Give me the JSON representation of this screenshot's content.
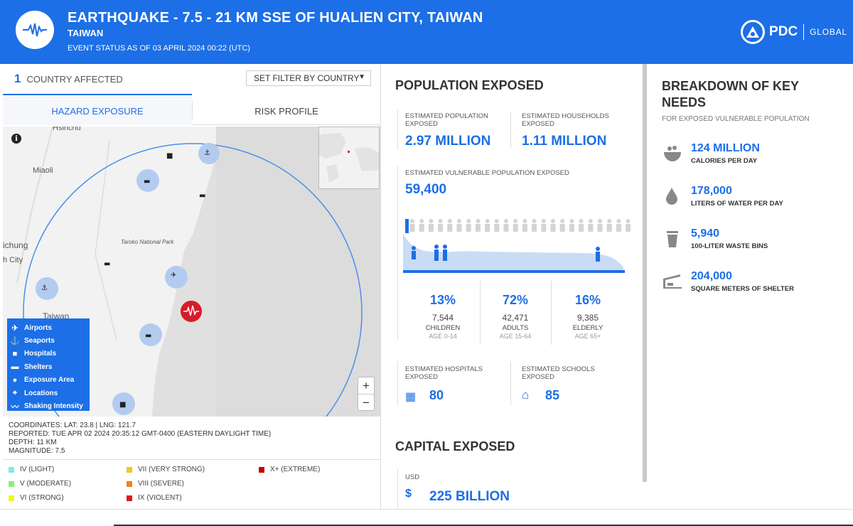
{
  "header": {
    "title": "EARTHQUAKE - 7.5 - 21 KM SSE OF HUALIEN CITY, TAIWAN",
    "subtitle": "TAIWAN",
    "status": "EVENT STATUS AS OF 03 APRIL 2024 00:22 (UTC)",
    "brand": "PDC",
    "brand_suffix": "GLOBAL",
    "event_icon": "seismograph-icon"
  },
  "left": {
    "country_count": "1",
    "country_label": "COUNTRY AFFECTED",
    "filter_label": "SET FILTER BY COUNTRY",
    "tabs": [
      "HAZARD EXPOSURE",
      "RISK PROFILE"
    ],
    "active_tab": "HAZARD EXPOSURE",
    "map": {
      "labels": [
        "Hsinchu",
        "Miaoli",
        "ichung",
        "h City",
        "Taiwan",
        "Taroko National Park"
      ],
      "info_glyph": "i",
      "legend": [
        {
          "icon": "airport-icon",
          "label": "Airports"
        },
        {
          "icon": "seaport-icon",
          "label": "Seaports"
        },
        {
          "icon": "hospital-icon",
          "label": "Hospitals"
        },
        {
          "icon": "shelter-icon",
          "label": "Shelters"
        },
        {
          "icon": "exposure-area-icon",
          "label": "Exposure Area"
        },
        {
          "icon": "location-icon",
          "label": "Locations"
        },
        {
          "icon": "shaking-intensity-icon",
          "label": "Shaking Intensity"
        }
      ],
      "zoom_in": "+",
      "zoom_out": "−"
    },
    "event_info": {
      "coordinates": "COORDINATES: LAT: 23.8 | LNG: 121.7",
      "reported": "REPORTED: TUE APR 02 2024 20:35:12 GMT-0400 (EASTERN DAYLIGHT TIME)",
      "depth": "DEPTH: 11 KM",
      "magnitude": "MAGNITUDE: 7.5"
    },
    "intensity_scale": [
      {
        "label": "IV (LIGHT)",
        "color": "#7fe8ee"
      },
      {
        "label": "V (MODERATE)",
        "color": "#86f07a"
      },
      {
        "label": "VI (STRONG)",
        "color": "#f5f51e"
      },
      {
        "label": "VII (VERY STRONG)",
        "color": "#f5c61c"
      },
      {
        "label": "VIII (SEVERE)",
        "color": "#f57f17"
      },
      {
        "label": "IX (VIOLENT)",
        "color": "#e01919"
      },
      {
        "label": "X+ (EXTREME)",
        "color": "#c40000"
      }
    ]
  },
  "population": {
    "title": "POPULATION EXPOSED",
    "est_pop_label": "ESTIMATED POPULATION EXPOSED",
    "est_pop_value": "2.97 MILLION",
    "est_hh_label": "ESTIMATED HOUSEHOLDS EXPOSED",
    "est_hh_value": "1.11 MILLION",
    "vuln_label": "ESTIMATED VULNERABLE POPULATION EXPOSED",
    "vuln_value": "59,400",
    "groups": [
      {
        "pct": "13%",
        "count": "7,544",
        "name": "CHILDREN",
        "age": "AGE 0-14"
      },
      {
        "pct": "72%",
        "count": "42,471",
        "name": "ADULTS",
        "age": "AGE 15-64"
      },
      {
        "pct": "16%",
        "count": "9,385",
        "name": "ELDERLY",
        "age": "AGE 65+"
      }
    ],
    "hospitals_label": "ESTIMATED HOSPITALS EXPOSED",
    "hospitals_value": "80",
    "schools_label": "ESTIMATED SCHOOLS EXPOSED",
    "schools_value": "85"
  },
  "capital": {
    "title": "CAPITAL EXPOSED",
    "currency": "USD",
    "value": "225 BILLION"
  },
  "needs": {
    "title": "BREAKDOWN OF KEY NEEDS",
    "subtitle": "FOR EXPOSED VULNERABLE POPULATION",
    "items": [
      {
        "icon": "food-bowl-icon",
        "value": "124 MILLION",
        "label": "CALORIES PER DAY"
      },
      {
        "icon": "water-drop-icon",
        "value": "178,000",
        "label": "LITERS OF WATER PER DAY"
      },
      {
        "icon": "trash-bin-icon",
        "value": "5,940",
        "label": "100-LITER WASTE BINS"
      },
      {
        "icon": "shelter-icon",
        "value": "204,000",
        "label": "SQUARE METERS OF SHELTER"
      }
    ]
  },
  "colors": {
    "accent": "#1c6fe6",
    "epicenter": "#d81b2a"
  }
}
